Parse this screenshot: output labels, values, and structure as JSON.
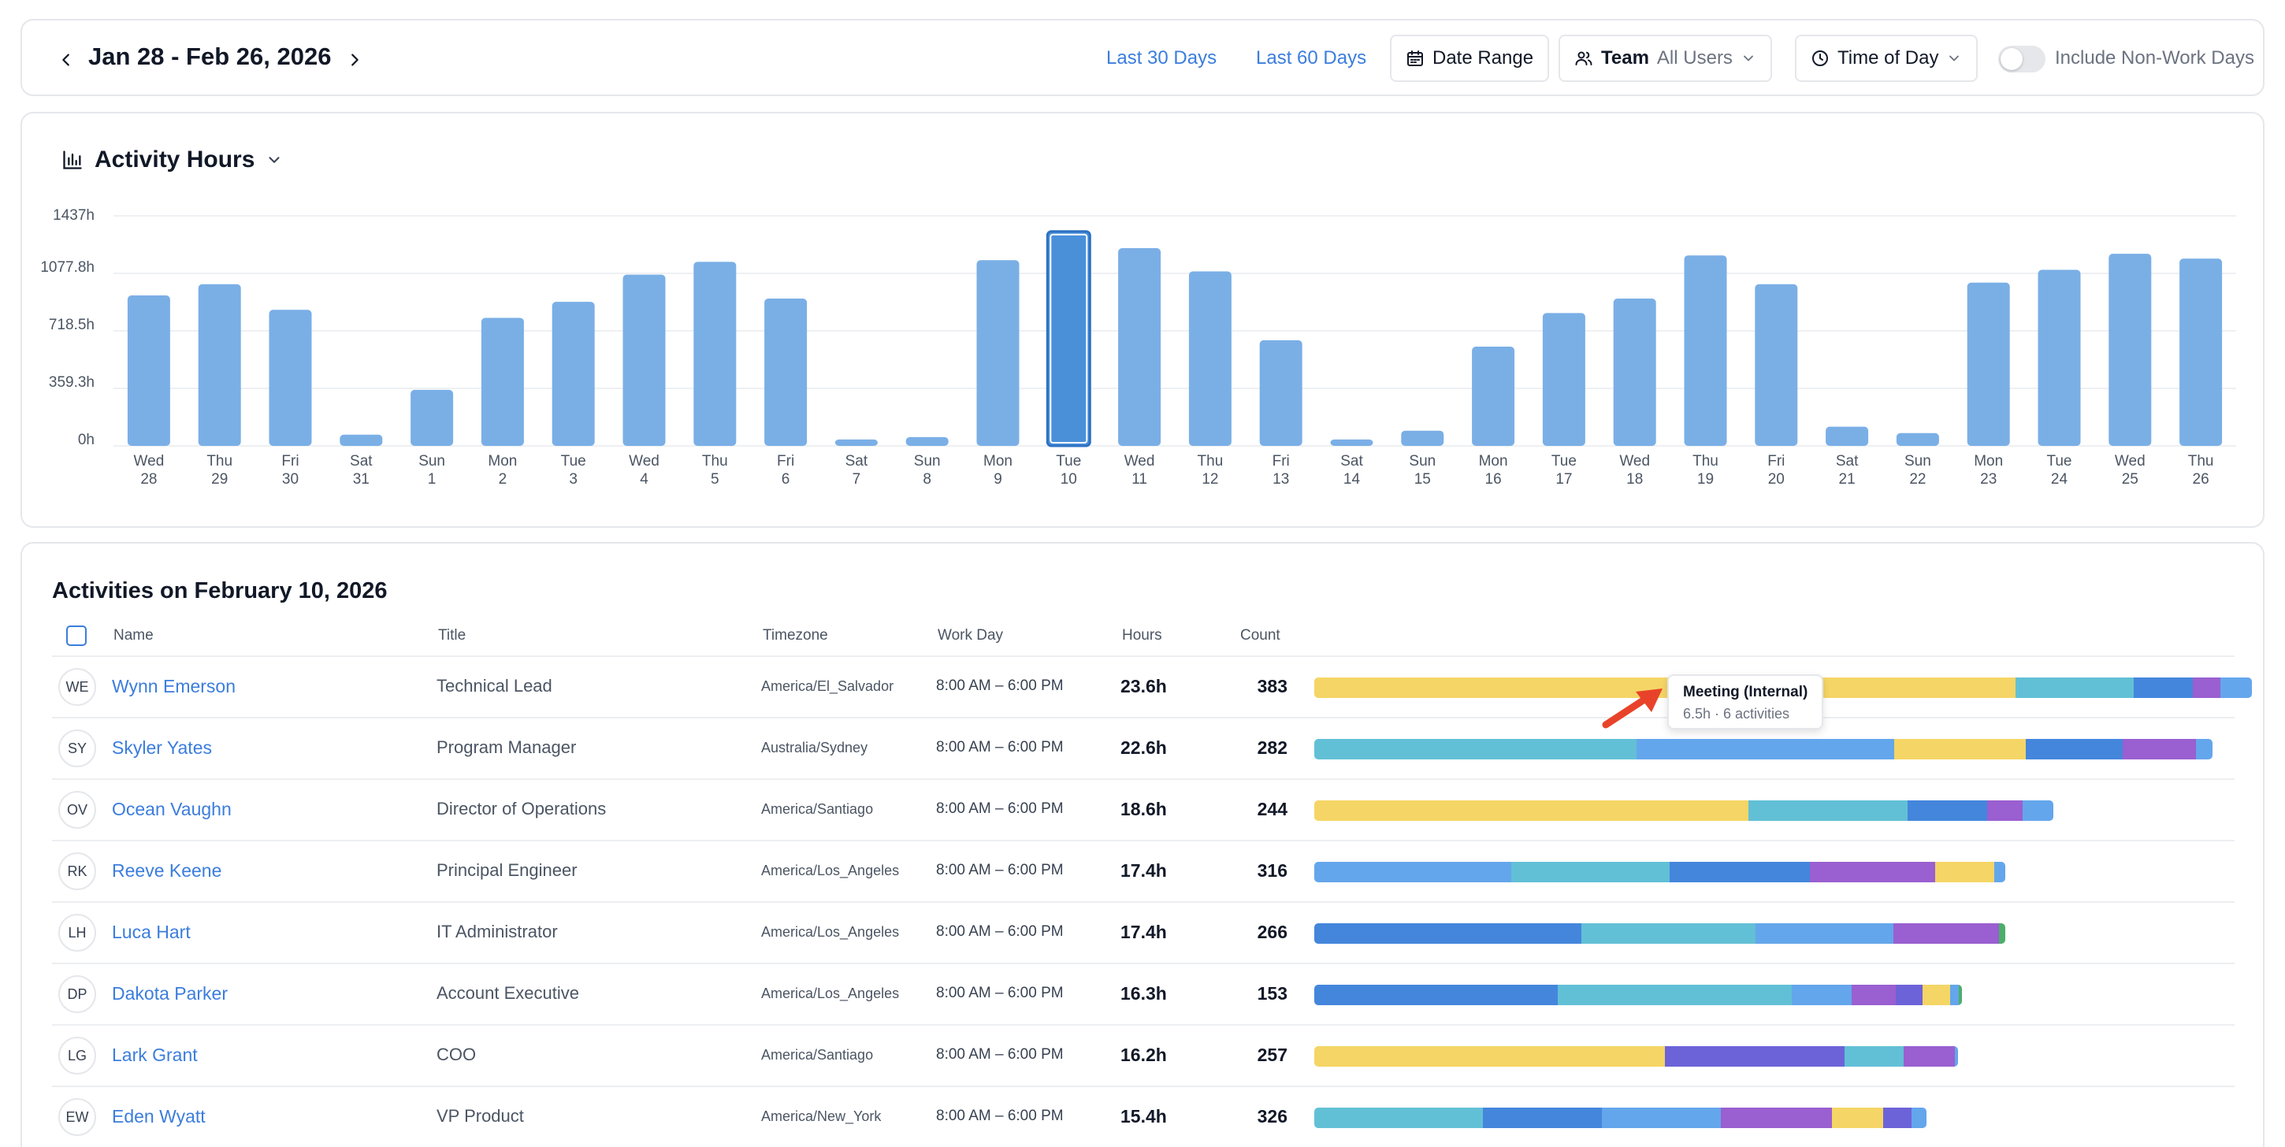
{
  "topbar": {
    "date_range": "Jan 28 - Feb 26, 2026",
    "last30": "Last 30 Days",
    "last60": "Last 60 Days",
    "date_range_btn": "Date Range",
    "team_label": "Team",
    "team_value": "All Users",
    "time_of_day": "Time of Day",
    "non_work_days": "Include Non-Work Days",
    "non_work_days_on": false
  },
  "chart_data": {
    "type": "bar",
    "title": "Activity Hours",
    "y_ticks": [
      "0h",
      "359.3h",
      "718.5h",
      "1077.8h",
      "1437h"
    ],
    "ylim": [
      0,
      1437
    ],
    "weekday_labels": [
      "Wed",
      "Thu",
      "Fri",
      "Sat",
      "Sun",
      "Mon",
      "Tue",
      "Wed",
      "Thu",
      "Fri",
      "Sat",
      "Sun",
      "Mon",
      "Tue",
      "Wed",
      "Thu",
      "Fri",
      "Sat",
      "Sun",
      "Mon",
      "Tue",
      "Wed",
      "Thu",
      "Fri",
      "Sat",
      "Sun",
      "Mon",
      "Tue",
      "Wed",
      "Thu"
    ],
    "day_labels": [
      "28",
      "29",
      "30",
      "31",
      "1",
      "2",
      "3",
      "4",
      "5",
      "6",
      "7",
      "8",
      "9",
      "10",
      "11",
      "12",
      "13",
      "14",
      "15",
      "16",
      "17",
      "18",
      "19",
      "20",
      "21",
      "22",
      "23",
      "24",
      "25",
      "26"
    ],
    "values": [
      940,
      1010,
      850,
      70,
      350,
      800,
      900,
      1070,
      1150,
      920,
      40,
      55,
      1160,
      1340,
      1235,
      1090,
      660,
      40,
      95,
      620,
      830,
      920,
      1190,
      1010,
      120,
      80,
      1020,
      1100,
      1200,
      1170
    ],
    "selected_index": 13,
    "colors": {
      "bar": "#7aafe6",
      "selected": "#4a90d9",
      "selected_stroke": "#2d72c4"
    }
  },
  "table": {
    "title": "Activities on February 10, 2026",
    "headers": {
      "name": "Name",
      "title": "Title",
      "timezone": "Timezone",
      "workday": "Work Day",
      "hours": "Hours",
      "count": "Count"
    },
    "rows": [
      {
        "initials": "WE",
        "name": "Wynn Emerson",
        "title": "Technical Lead",
        "timezone": "America/El_Salvador",
        "workday": "8:00 AM – 6:00 PM",
        "hours": "23.6h",
        "count": "383",
        "segments": [
          [
            "#f5d565",
            48.0
          ],
          [
            "#f5d565",
            26.8
          ],
          [
            "#62c0d6",
            12.6
          ],
          [
            "#4486dc",
            6.3
          ],
          [
            "#9a5fd0",
            2.9
          ],
          [
            "#64a6ec",
            3.4
          ]
        ]
      },
      {
        "initials": "SY",
        "name": "Skyler Yates",
        "title": "Program Manager",
        "timezone": "Australia/Sydney",
        "workday": "8:00 AM – 6:00 PM",
        "hours": "22.6h",
        "count": "282",
        "segments": [
          [
            "#62c0d6",
            35.9
          ],
          [
            "#64a6ec",
            28.7
          ],
          [
            "#f5d565",
            14.6
          ],
          [
            "#4486dc",
            10.8
          ],
          [
            "#9a5fd0",
            8.2
          ],
          [
            "#64a6ec",
            1.8
          ]
        ]
      },
      {
        "initials": "OV",
        "name": "Ocean Vaughn",
        "title": "Director of Operations",
        "timezone": "America/Santiago",
        "workday": "8:00 AM – 6:00 PM",
        "hours": "18.6h",
        "count": "244",
        "segments": [
          [
            "#f5d565",
            58.7
          ],
          [
            "#62c0d6",
            21.6
          ],
          [
            "#4486dc",
            10.8
          ],
          [
            "#9a5fd0",
            4.7
          ],
          [
            "#64a6ec",
            4.2
          ]
        ]
      },
      {
        "initials": "RK",
        "name": "Reeve Keene",
        "title": "Principal Engineer",
        "timezone": "America/Los_Angeles",
        "workday": "8:00 AM – 6:00 PM",
        "hours": "17.4h",
        "count": "316",
        "segments": [
          [
            "#64a6ec",
            28.5
          ],
          [
            "#62c0d6",
            22.9
          ],
          [
            "#4486dc",
            20.3
          ],
          [
            "#9a5fd0",
            18.1
          ],
          [
            "#f5d565",
            8.6
          ],
          [
            "#64a6ec",
            1.6
          ]
        ]
      },
      {
        "initials": "LH",
        "name": "Luca Hart",
        "title": "IT Administrator",
        "timezone": "America/Los_Angeles",
        "workday": "8:00 AM – 6:00 PM",
        "hours": "17.4h",
        "count": "266",
        "segments": [
          [
            "#4486dc",
            38.7
          ],
          [
            "#62c0d6",
            25.1
          ],
          [
            "#64a6ec",
            20.0
          ],
          [
            "#9a5fd0",
            15.3
          ],
          [
            "#4cae6b",
            0.9
          ]
        ]
      },
      {
        "initials": "DP",
        "name": "Dakota Parker",
        "title": "Account Executive",
        "timezone": "America/Los_Angeles",
        "workday": "8:00 AM – 6:00 PM",
        "hours": "16.3h",
        "count": "153",
        "segments": [
          [
            "#4486dc",
            37.6
          ],
          [
            "#62c0d6",
            36.1
          ],
          [
            "#64a6ec",
            9.3
          ],
          [
            "#9a5fd0",
            6.8
          ],
          [
            "#6c63d8",
            4.1
          ],
          [
            "#f5d565",
            4.3
          ],
          [
            "#64a6ec",
            1.3
          ],
          [
            "#4cae6b",
            0.5
          ]
        ]
      },
      {
        "initials": "LG",
        "name": "Lark Grant",
        "title": "COO",
        "timezone": "America/Santiago",
        "workday": "8:00 AM – 6:00 PM",
        "hours": "16.2h",
        "count": "257",
        "segments": [
          [
            "#f5d565",
            54.5
          ],
          [
            "#6c63d8",
            27.9
          ],
          [
            "#62c0d6",
            9.1
          ],
          [
            "#9a5fd0",
            8.0
          ],
          [
            "#64a6ec",
            0.5
          ]
        ]
      },
      {
        "initials": "EW",
        "name": "Eden Wyatt",
        "title": "VP Product",
        "timezone": "America/New_York",
        "workday": "8:00 AM – 6:00 PM",
        "hours": "15.4h",
        "count": "326",
        "segments": [
          [
            "#62c0d6",
            27.6
          ],
          [
            "#4486dc",
            19.4
          ],
          [
            "#64a6ec",
            19.4
          ],
          [
            "#9a5fd0",
            18.2
          ],
          [
            "#f5d565",
            8.3
          ],
          [
            "#6c63d8",
            4.7
          ],
          [
            "#64a6ec",
            2.4
          ]
        ]
      }
    ],
    "bar_max_hours": 23.6
  },
  "tooltip": {
    "title": "Meeting (Internal)",
    "detail": "6.5h · 6 activities"
  }
}
